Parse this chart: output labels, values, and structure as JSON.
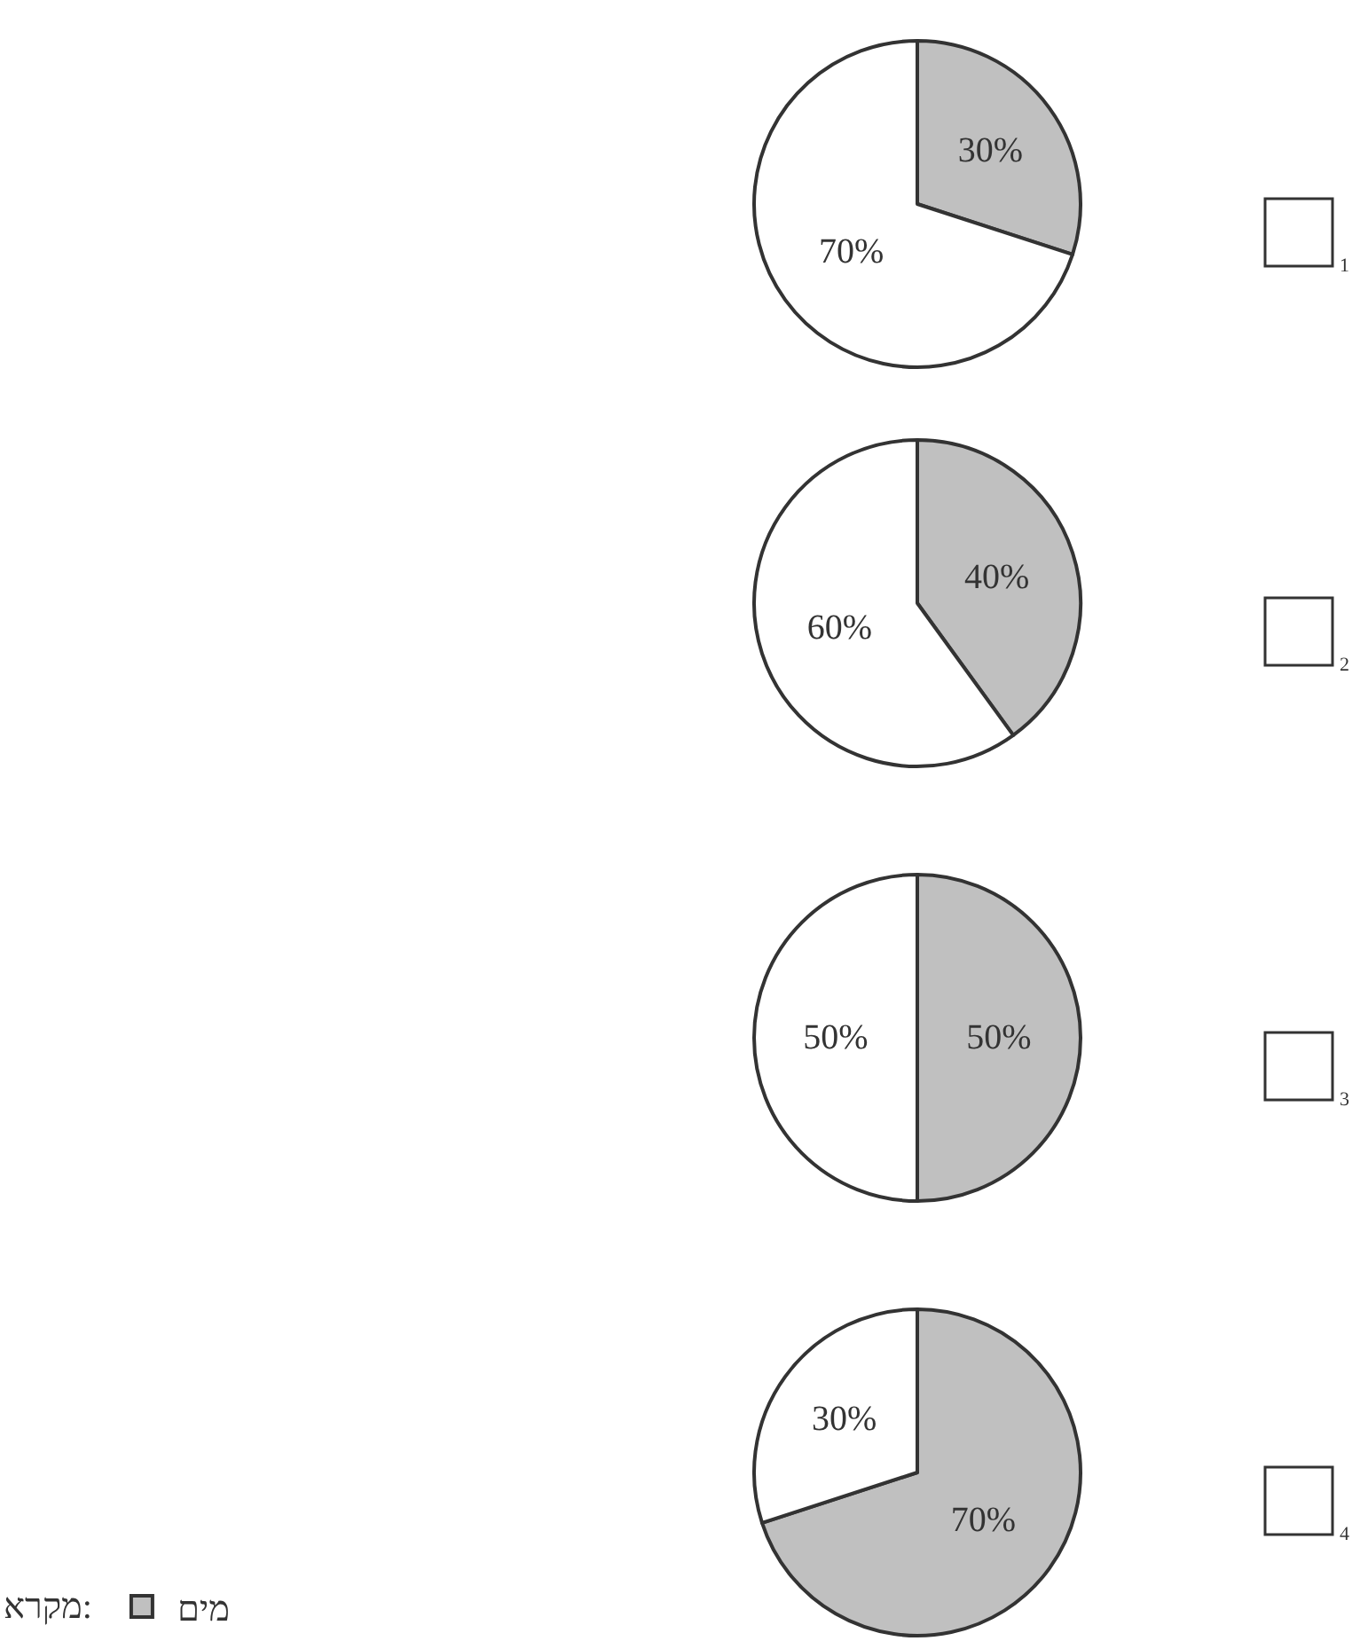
{
  "chart_data": [
    {
      "type": "pie",
      "categories": [
        null,
        null
      ],
      "values": [
        30,
        70
      ],
      "colors": [
        "#c0c0c0",
        "#ffffff"
      ],
      "value_labels": [
        "30%",
        "70%"
      ],
      "annotations": [
        "1"
      ]
    },
    {
      "type": "pie",
      "categories": [
        null,
        null
      ],
      "values": [
        40,
        60
      ],
      "colors": [
        "#c0c0c0",
        "#ffffff"
      ],
      "value_labels": [
        "40%",
        "60%"
      ],
      "annotations": [
        "2"
      ]
    },
    {
      "type": "pie",
      "categories": [
        null,
        null
      ],
      "values": [
        50,
        50
      ],
      "colors": [
        "#c0c0c0",
        "#ffffff"
      ],
      "value_labels": [
        "50%",
        "50%"
      ],
      "annotations": [
        "3"
      ]
    },
    {
      "type": "pie",
      "categories": [
        "מים",
        null
      ],
      "values": [
        70,
        30
      ],
      "colors": [
        "#c0c0c0",
        "#ffffff"
      ],
      "value_labels": [
        "70%",
        "30%"
      ],
      "annotations": [
        "4"
      ],
      "legend": "bottom left",
      "legend_title": "מקרא:"
    }
  ]
}
